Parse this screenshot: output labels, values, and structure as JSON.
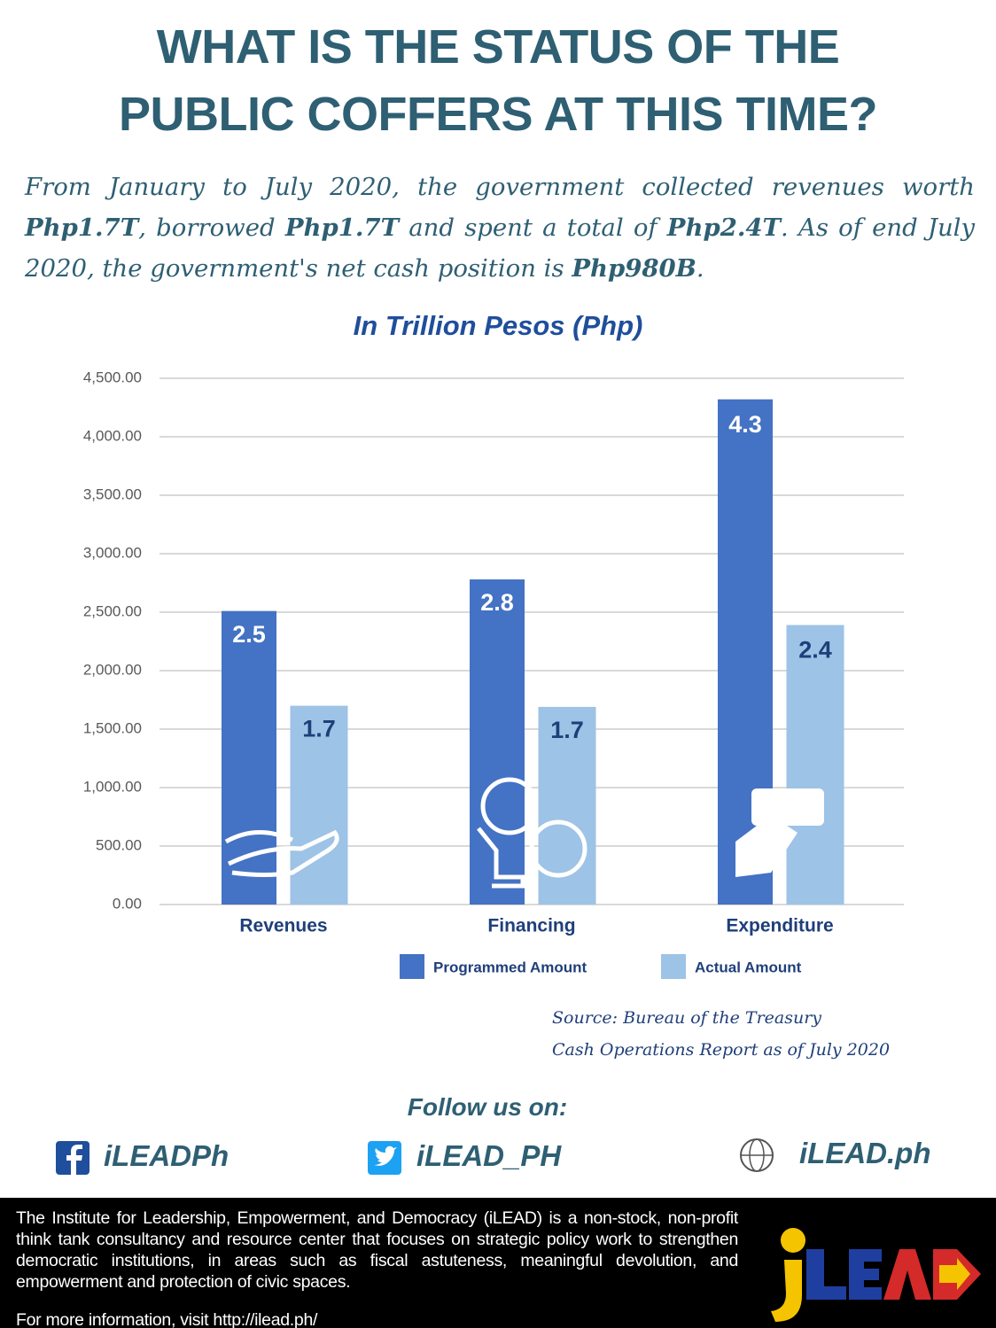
{
  "header": {
    "title": [
      "WHAT IS THE STATUS OF THE",
      "PUBLIC COFFERS AT THIS TIME?"
    ]
  },
  "description": [
    "From January to July 2020, the government collected revenues worth ",
    "Php1.7T",
    ", borrowed ",
    "Php1.7T",
    " and spent a total of ",
    "Php2.4T",
    ". As of end July 2020, the government's net cash position is ",
    "Php980B",
    "."
  ],
  "chart_data": {
    "type": "bar",
    "title": "In Trillion Pesos (Php)",
    "categories": [
      "Revenues",
      "Financing",
      "Expenditure"
    ],
    "series": [
      {
        "name": "Programmed Amount",
        "color": "#4472c4",
        "values": [
          2510,
          2780,
          4320
        ],
        "value_labels": [
          "2.5",
          "2.8",
          "4.3"
        ]
      },
      {
        "name": "Actual Amount",
        "color": "#9dc3e6",
        "values": [
          1700,
          1690,
          2390
        ],
        "value_labels": [
          "1.7",
          "1.7",
          "2.4"
        ]
      }
    ],
    "ylim": [
      0,
      4500
    ],
    "yticks": [
      {
        "value": 0,
        "label": "0.00"
      },
      {
        "value": 500,
        "label": "500.00"
      },
      {
        "value": 1000,
        "label": "1,000.00"
      },
      {
        "value": 1500,
        "label": "1,500.00"
      },
      {
        "value": 2000,
        "label": "2,000.00"
      },
      {
        "value": 2500,
        "label": "2,500.00"
      },
      {
        "value": 3000,
        "label": "3,000.00"
      },
      {
        "value": 3500,
        "label": "3,500.00"
      },
      {
        "value": 4000,
        "label": "4,000.00"
      },
      {
        "value": 4500,
        "label": "4,500.00"
      }
    ],
    "grid": true,
    "legend": "bottom"
  },
  "source": [
    "Source: Bureau of the Treasury",
    "Cash Operations Report as of July 2020"
  ],
  "follow": "Follow us on:",
  "social": [
    "iLEADPh",
    "iLEAD_PH",
    "iLEAD.ph"
  ],
  "footer": {
    "about": "The Institute for Leadership, Empowerment, and Democracy (iLEAD) is a non-stock, non-profit think tank consultancy and resource center that focuses on strategic policy work to strengthen democratic institutions, in areas such as fiscal astuteness, meaningful devolution, and empowerment and protection of civic spaces.",
    "more": "For more information, visit http://ilead.ph/"
  }
}
